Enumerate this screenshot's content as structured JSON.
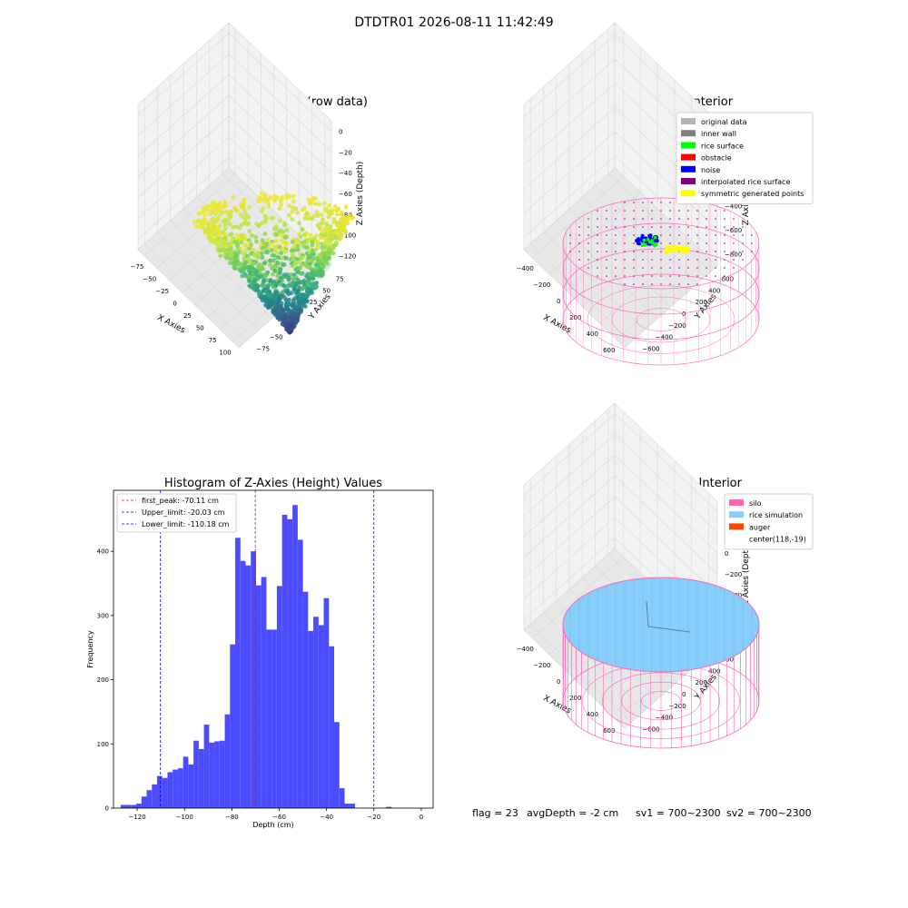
{
  "figure": {
    "suptitle": "DTDTR01 2026-08-11 11:42:49",
    "status": {
      "flag": "flag = 23",
      "avg_depth": "avgDepth = -2 cm",
      "sv1": "sv1 = 700~2300",
      "sv2": "sv2 = 700~2300"
    },
    "colors": {
      "hist_bar": "#4c4cff",
      "first_peak": "#ff0000",
      "limits": "#0000ff",
      "silo": "#ff69b4",
      "rice": "#87cefa",
      "auger": "#ff4500",
      "rice_surface": "#00ff00",
      "noise": "#0000ff",
      "symmetric": "#ffff00",
      "interpolated": "#800080",
      "pane": "#f2f2f2",
      "grid": "#d9d9d9"
    }
  },
  "chart_data": [
    {
      "type": "scatter",
      "subtype": "3d",
      "title": "3D Plot of Silo Interior(row data)",
      "xlabel": "X Axies",
      "ylabel": "Y Axies",
      "zlabel": "Z Axies (Depth)",
      "xlim": [
        -90,
        110
      ],
      "ylim": [
        -85,
        95
      ],
      "zlim": [
        -140,
        10
      ],
      "xticks": [
        "−75",
        "−50",
        "−25",
        "0",
        "25",
        "50",
        "75",
        "100"
      ],
      "yticks": [
        "−75",
        "−50",
        "−25",
        "0",
        "25",
        "50",
        "75"
      ],
      "zticks": [
        "0",
        "−20",
        "−40",
        "−60",
        "−80",
        "−100",
        "−120"
      ],
      "colormap": "viridis",
      "grid": true
    },
    {
      "type": "scatter",
      "subtype": "3d",
      "title": "3D classify of Silo Interior",
      "xlabel": "X Axies",
      "ylabel": "Y Axies",
      "zlabel": "Z Axies (Depth)",
      "xlim": [
        -500,
        700
      ],
      "ylim": [
        -650,
        650
      ],
      "zlim": [
        -950,
        280
      ],
      "xticks": [
        "−400",
        "−200",
        "0",
        "200",
        "400",
        "600"
      ],
      "yticks": [
        "−600",
        "−400",
        "−200",
        "0",
        "200",
        "400",
        "600"
      ],
      "zticks": [
        "200",
        "0",
        "−200",
        "−400",
        "−600",
        "−800"
      ],
      "legend": [
        "original data",
        "inner wall",
        "rice surface",
        "obstacle",
        "noise",
        "interpolated rice surface",
        "symmetric generated points"
      ],
      "legend_colors": [
        "#b3b3b3",
        "#808080",
        "#00ff00",
        "#ff0000",
        "#0000ff",
        "#800080",
        "#ffff00"
      ],
      "legend_loc": "upper right",
      "grid": true
    },
    {
      "type": "bar",
      "subtype": "histogram",
      "title": "Histogram of Z-Axies (Height) Values",
      "xlabel": "Depth (cm)",
      "ylabel": "Frequency",
      "xlim": [
        -130,
        5
      ],
      "ylim": [
        0,
        495
      ],
      "xticks": [
        -120,
        -100,
        -80,
        -60,
        -40,
        -20,
        0
      ],
      "xtick_labels": [
        "−120",
        "−100",
        "−80",
        "−60",
        "−40",
        "−20",
        "0"
      ],
      "yticks": [
        0,
        100,
        200,
        300,
        400
      ],
      "bin_start": -127,
      "bin_width": 2.2,
      "values": [
        5,
        5,
        5,
        7,
        18,
        28,
        37,
        50,
        47,
        56,
        60,
        62,
        80,
        68,
        105,
        92,
        130,
        102,
        104,
        105,
        146,
        255,
        421,
        385,
        378,
        400,
        347,
        360,
        278,
        278,
        346,
        457,
        450,
        472,
        418,
        337,
        276,
        298,
        285,
        327,
        252,
        134,
        31,
        7,
        7,
        0,
        0,
        0,
        0,
        0,
        0,
        2
      ],
      "vlines": [
        {
          "x": -70.11,
          "label": "first_peak: -70.11 cm",
          "color": "#ff0000"
        },
        {
          "x": -20.03,
          "label": "Upper_limit: -20.03 cm",
          "color": "#0000ff"
        },
        {
          "x": -110.18,
          "label": "Lower_limit: -110.18 cm",
          "color": "#0000ff"
        }
      ],
      "legend_loc": "upper left",
      "grid": false
    },
    {
      "type": "scatter",
      "subtype": "3d-surface",
      "title": "3D simulation of Silo Interior",
      "xlabel": "X Axies",
      "ylabel": "Y Axies",
      "zlabel": "Z Axies (Depth)",
      "xlim": [
        -500,
        700
      ],
      "ylim": [
        -650,
        650
      ],
      "zlim": [
        -950,
        480
      ],
      "xticks": [
        "−400",
        "−200",
        "0",
        "200",
        "400",
        "600"
      ],
      "yticks": [
        "−600",
        "−400",
        "−200",
        "0",
        "200",
        "400",
        "600"
      ],
      "zticks": [
        "400",
        "200",
        "0",
        "−200",
        "−400",
        "−600",
        "−800"
      ],
      "legend": [
        "silo",
        "rice simulation",
        "auger",
        "center(118,-19)"
      ],
      "legend_colors": [
        "#ff69b4",
        "#87cefa",
        "#ff4500",
        ""
      ],
      "legend_loc": "upper right",
      "grid": true
    }
  ]
}
